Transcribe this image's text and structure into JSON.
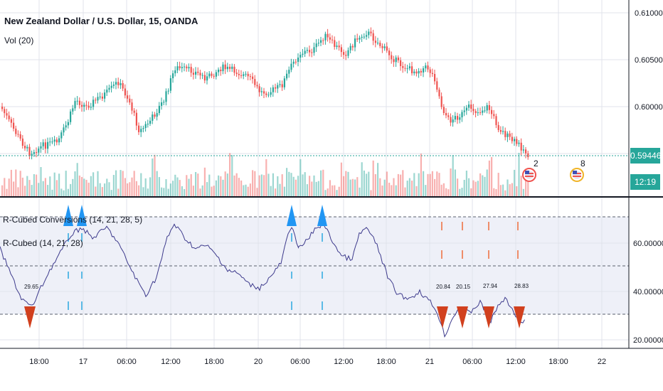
{
  "header": {
    "title": "New Zealand Dollar / U.S. Dollar, 15, OANDA",
    "volume_label": "Vol (20)"
  },
  "indicators": {
    "conversions_label": "R-Cubed Conversions (14, 21, 28, 5)",
    "rcubed_label": "R-Cubed (14, 21, 28)"
  },
  "price_axis": {
    "ticks": [
      "0.61000",
      "0.60500",
      "0.60000",
      "0.59446"
    ],
    "current_price": "0.59446",
    "countdown": "12:19"
  },
  "indicator_axis": {
    "ticks": [
      "60.00000",
      "40.00000",
      "20.00000"
    ]
  },
  "time_axis": {
    "ticks": [
      "18:00",
      "17",
      "06:00",
      "12:00",
      "18:00",
      "20",
      "06:00",
      "12:00",
      "18:00",
      "21",
      "06:00",
      "12:00",
      "18:00",
      "22"
    ]
  },
  "events": [
    {
      "flag": "us-flag-icon",
      "count": "2"
    },
    {
      "flag": "us-flag-icon",
      "count": "8"
    }
  ],
  "signal_labels": [
    "29.65",
    "20.84",
    "20.15",
    "27.94",
    "28.83"
  ],
  "colors": {
    "up": "#26a69a",
    "down": "#ef5350",
    "indicator_line": "#3d3a8c",
    "buy_marker": "#2196f3",
    "sell_marker": "#d1401e",
    "price_line": "#26a69a",
    "grid": "#e0e3eb"
  }
}
